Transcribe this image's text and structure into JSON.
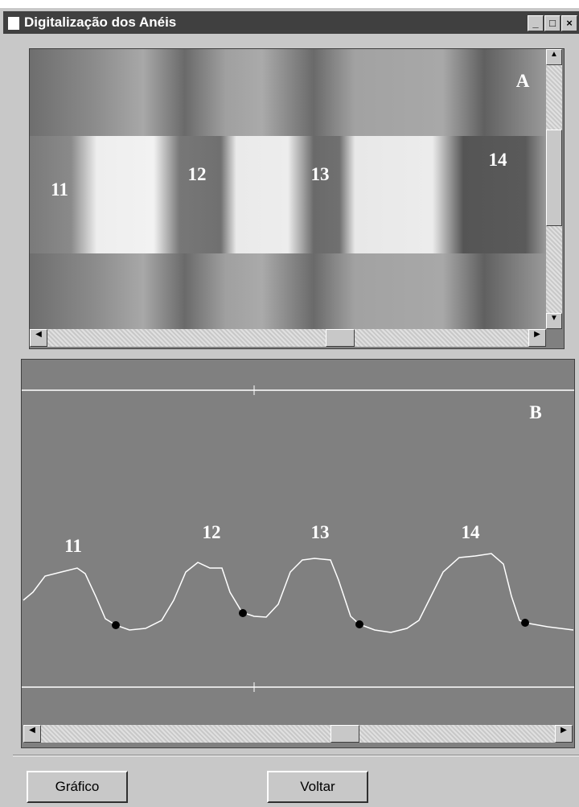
{
  "window": {
    "title": "Digitalização dos Anéis"
  },
  "panel_a": {
    "label": "A",
    "ring_labels": [
      "11",
      "12",
      "13",
      "14"
    ]
  },
  "panel_b": {
    "label": "B",
    "ring_labels": [
      "11",
      "12",
      "13",
      "14"
    ]
  },
  "buttons": [
    "Gráfico",
    "Voltar"
  ]
}
